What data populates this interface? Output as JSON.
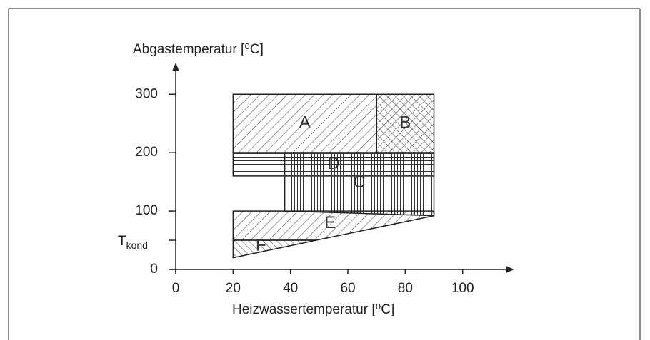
{
  "axes": {
    "y_title": "Abgastemperatur [⁰C]",
    "x_title": "Heizwassertemperatur [⁰C]",
    "xlim": [
      0,
      118
    ],
    "ylim": [
      0,
      354
    ],
    "xticks": [
      0,
      20,
      40,
      60,
      80,
      100
    ],
    "yticks": [
      0,
      {
        "value": 50,
        "label": "T",
        "subscript": "kond"
      },
      100,
      200,
      300
    ]
  },
  "regions": [
    {
      "label": "A",
      "hatch": "diag",
      "points": [
        [
          20,
          200
        ],
        [
          70,
          200
        ],
        [
          70,
          300
        ],
        [
          20,
          300
        ]
      ]
    },
    {
      "label": "B",
      "hatch": "cross",
      "points": [
        [
          70,
          200
        ],
        [
          90,
          200
        ],
        [
          90,
          300
        ],
        [
          70,
          300
        ]
      ]
    },
    {
      "label": "D",
      "hatch": "horiz",
      "points": [
        [
          20,
          160
        ],
        [
          90,
          160
        ],
        [
          90,
          200
        ],
        [
          20,
          200
        ]
      ]
    },
    {
      "label": "C",
      "hatch": "vert",
      "points": [
        [
          38,
          100
        ],
        [
          90,
          92
        ],
        [
          90,
          200
        ],
        [
          38,
          200
        ]
      ]
    },
    {
      "label": "E",
      "hatch": "diag",
      "points": [
        [
          20,
          50
        ],
        [
          49,
          50
        ],
        [
          90,
          92
        ],
        [
          90,
          100
        ],
        [
          20,
          100
        ]
      ]
    },
    {
      "label": "F",
      "hatch": "back",
      "points": [
        [
          20,
          20
        ],
        [
          49,
          50
        ],
        [
          20,
          50
        ]
      ]
    }
  ]
}
